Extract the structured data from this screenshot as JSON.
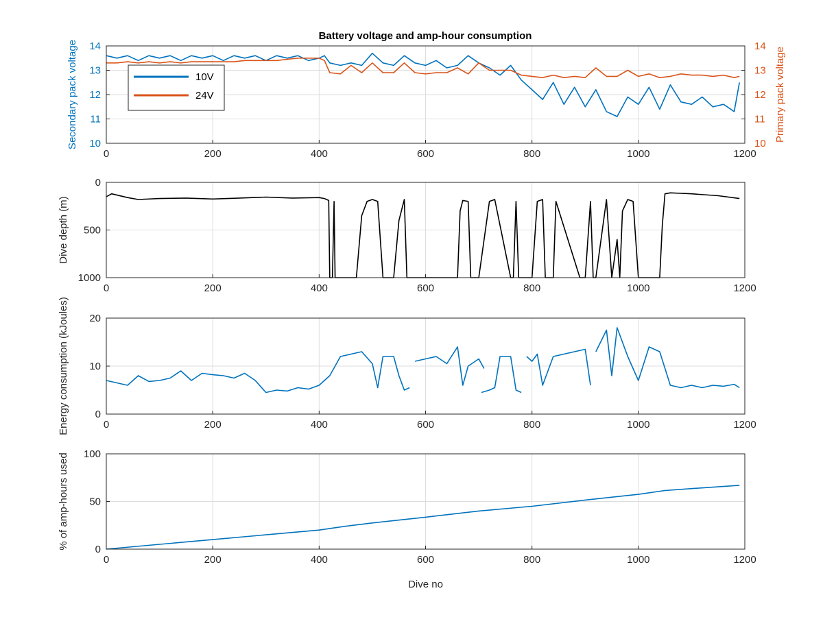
{
  "figure": {
    "title": "Battery voltage and amp-hour consumption",
    "colors": {
      "blue": "#0072bd",
      "orange": "#d95319",
      "black": "#000000",
      "grid": "#dddddd",
      "axis": "#262626"
    }
  },
  "chart_data": [
    {
      "type": "line",
      "title": "Battery voltage and amp-hour consumption",
      "xlabel": "",
      "ylabel_left": "Secondary pack voltage",
      "ylabel_right": "Primary pack voltage",
      "xlim": [
        0,
        1200
      ],
      "ylim_left": [
        10,
        14
      ],
      "ylim_right": [
        10,
        14
      ],
      "xticks": [
        0,
        200,
        400,
        600,
        800,
        1000,
        1200
      ],
      "yticks_left": [
        10,
        11,
        12,
        13,
        14
      ],
      "yticks_right": [
        10,
        11,
        12,
        13,
        14
      ],
      "grid": true,
      "legend_position": "top-left",
      "series": [
        {
          "name": "10V",
          "axis": "left",
          "color": "#0072bd",
          "x": [
            0,
            20,
            40,
            60,
            80,
            100,
            120,
            140,
            160,
            180,
            200,
            220,
            240,
            260,
            280,
            300,
            320,
            340,
            360,
            380,
            400,
            410,
            420,
            440,
            460,
            480,
            500,
            520,
            540,
            560,
            580,
            600,
            620,
            640,
            660,
            680,
            700,
            720,
            740,
            760,
            780,
            800,
            820,
            840,
            860,
            880,
            900,
            920,
            940,
            960,
            980,
            1000,
            1020,
            1040,
            1060,
            1080,
            1100,
            1120,
            1140,
            1160,
            1180,
            1190
          ],
          "y": [
            13.6,
            13.5,
            13.6,
            13.4,
            13.6,
            13.5,
            13.6,
            13.4,
            13.6,
            13.5,
            13.6,
            13.4,
            13.6,
            13.5,
            13.6,
            13.4,
            13.6,
            13.5,
            13.6,
            13.4,
            13.5,
            13.6,
            13.3,
            13.2,
            13.3,
            13.2,
            13.7,
            13.3,
            13.2,
            13.6,
            13.3,
            13.2,
            13.4,
            13.1,
            13.2,
            13.6,
            13.3,
            13.1,
            12.8,
            13.2,
            12.6,
            12.2,
            11.8,
            12.5,
            11.6,
            12.3,
            11.5,
            12.2,
            11.3,
            11.1,
            11.9,
            11.6,
            12.3,
            11.4,
            12.4,
            11.7,
            11.6,
            11.9,
            11.5,
            11.6,
            11.3,
            12.5
          ]
        },
        {
          "name": "24V",
          "axis": "right",
          "color": "#d95319",
          "x": [
            0,
            20,
            40,
            60,
            80,
            100,
            120,
            140,
            160,
            180,
            200,
            220,
            240,
            260,
            280,
            300,
            320,
            340,
            360,
            380,
            400,
            410,
            420,
            440,
            460,
            480,
            500,
            520,
            540,
            560,
            580,
            600,
            620,
            640,
            660,
            680,
            700,
            720,
            740,
            760,
            780,
            800,
            820,
            840,
            860,
            880,
            900,
            920,
            940,
            960,
            980,
            1000,
            1020,
            1040,
            1060,
            1080,
            1100,
            1120,
            1140,
            1160,
            1180,
            1190
          ],
          "y": [
            13.3,
            13.3,
            13.35,
            13.3,
            13.35,
            13.3,
            13.35,
            13.3,
            13.35,
            13.35,
            13.35,
            13.35,
            13.35,
            13.4,
            13.4,
            13.4,
            13.4,
            13.45,
            13.5,
            13.5,
            13.5,
            13.4,
            12.9,
            12.85,
            13.2,
            12.9,
            13.3,
            12.9,
            12.9,
            13.3,
            12.9,
            12.85,
            12.9,
            12.9,
            13.1,
            12.85,
            13.3,
            13.0,
            13.0,
            13.0,
            12.8,
            12.75,
            12.7,
            12.8,
            12.7,
            12.75,
            12.7,
            13.1,
            12.75,
            12.75,
            13.0,
            12.75,
            12.85,
            12.7,
            12.75,
            12.85,
            12.8,
            12.8,
            12.75,
            12.8,
            12.7,
            12.75
          ]
        }
      ]
    },
    {
      "type": "line",
      "title": "",
      "xlabel": "",
      "ylabel": "Dive depth (m)",
      "xlim": [
        0,
        1200
      ],
      "ylim": [
        0,
        1000
      ],
      "y_reversed": true,
      "xticks": [
        0,
        200,
        400,
        600,
        800,
        1000,
        1200
      ],
      "yticks": [
        0,
        500,
        1000
      ],
      "grid": true,
      "series": [
        {
          "color": "#000000",
          "x": [
            0,
            10,
            40,
            60,
            100,
            150,
            200,
            250,
            300,
            350,
            400,
            410,
            418,
            420,
            425,
            428,
            430,
            432,
            435,
            470,
            480,
            490,
            500,
            510,
            520,
            540,
            550,
            560,
            565,
            660,
            665,
            670,
            680,
            685,
            700,
            720,
            730,
            760,
            765,
            770,
            775,
            800,
            810,
            820,
            825,
            840,
            845,
            890,
            900,
            910,
            915,
            920,
            940,
            950,
            960,
            965,
            970,
            980,
            990,
            1000,
            1005,
            1040,
            1045,
            1050,
            1060,
            1080,
            1100,
            1150,
            1190
          ],
          "y": [
            150,
            120,
            160,
            180,
            170,
            165,
            175,
            165,
            155,
            165,
            160,
            170,
            190,
            1000,
            1000,
            200,
            1000,
            1000,
            1000,
            1000,
            350,
            200,
            180,
            200,
            1000,
            1000,
            400,
            180,
            1000,
            1000,
            300,
            190,
            200,
            1000,
            1000,
            200,
            180,
            1000,
            1000,
            200,
            1000,
            1000,
            200,
            180,
            1000,
            1000,
            200,
            1000,
            1000,
            200,
            1000,
            1000,
            180,
            1000,
            600,
            1000,
            300,
            180,
            200,
            1000,
            1000,
            1000,
            450,
            120,
            110,
            115,
            120,
            140,
            170
          ]
        }
      ]
    },
    {
      "type": "line",
      "title": "",
      "xlabel": "",
      "ylabel": "Energy consumption (kJoules)",
      "xlim": [
        0,
        1200
      ],
      "ylim": [
        0,
        20
      ],
      "xticks": [
        0,
        200,
        400,
        600,
        800,
        1000,
        1200
      ],
      "yticks": [
        0,
        10,
        20
      ],
      "grid": true,
      "series": [
        {
          "color": "#0072bd",
          "x": [
            0,
            20,
            40,
            60,
            80,
            100,
            120,
            140,
            160,
            180,
            200,
            220,
            240,
            260,
            280,
            300,
            320,
            340,
            360,
            380,
            400,
            420,
            430,
            440,
            460,
            480,
            500,
            510,
            520,
            540,
            550,
            560,
            570,
            null,
            580,
            600,
            620,
            640,
            660,
            670,
            680,
            700,
            710,
            null,
            705,
            720,
            730,
            740,
            760,
            770,
            780,
            null,
            790,
            800,
            810,
            820,
            840,
            860,
            880,
            900,
            910,
            null,
            920,
            940,
            950,
            960,
            980,
            1000,
            1020,
            1040,
            1060,
            1080,
            1100,
            1120,
            1140,
            1160,
            1180,
            1190
          ],
          "y": [
            7,
            6.5,
            6,
            8,
            6.8,
            7,
            7.5,
            9,
            7,
            8.5,
            8.2,
            8,
            7.5,
            8.5,
            7,
            4.5,
            5,
            4.8,
            5.5,
            5.2,
            6,
            8,
            10,
            12,
            12.5,
            13,
            10.5,
            5.5,
            12,
            12,
            8,
            5,
            5.5,
            null,
            11,
            11.5,
            12,
            10.5,
            14,
            6,
            10,
            11.5,
            9.5,
            null,
            4.5,
            5,
            5.5,
            12,
            12,
            5,
            4.5,
            null,
            12,
            11,
            12.5,
            6,
            12,
            12.5,
            13,
            13.5,
            6,
            null,
            13,
            17.5,
            8,
            18,
            12,
            7,
            14,
            13,
            6,
            5.5,
            6,
            5.5,
            6,
            5.8,
            6.2,
            5.5
          ]
        }
      ]
    },
    {
      "type": "line",
      "title": "",
      "xlabel": "Dive no",
      "ylabel": "% of amp-hours used",
      "xlim": [
        0,
        1200
      ],
      "ylim": [
        0,
        100
      ],
      "xticks": [
        0,
        200,
        400,
        600,
        800,
        1000,
        1200
      ],
      "yticks": [
        0,
        50,
        100
      ],
      "grid": true,
      "series": [
        {
          "color": "#0072bd",
          "x": [
            0,
            100,
            200,
            300,
            400,
            450,
            500,
            600,
            700,
            800,
            900,
            1000,
            1050,
            1100,
            1190
          ],
          "y": [
            0,
            5,
            10,
            15,
            20,
            24,
            27.5,
            33.5,
            40,
            45,
            51.5,
            57.5,
            61.5,
            63.5,
            67
          ]
        }
      ]
    }
  ]
}
